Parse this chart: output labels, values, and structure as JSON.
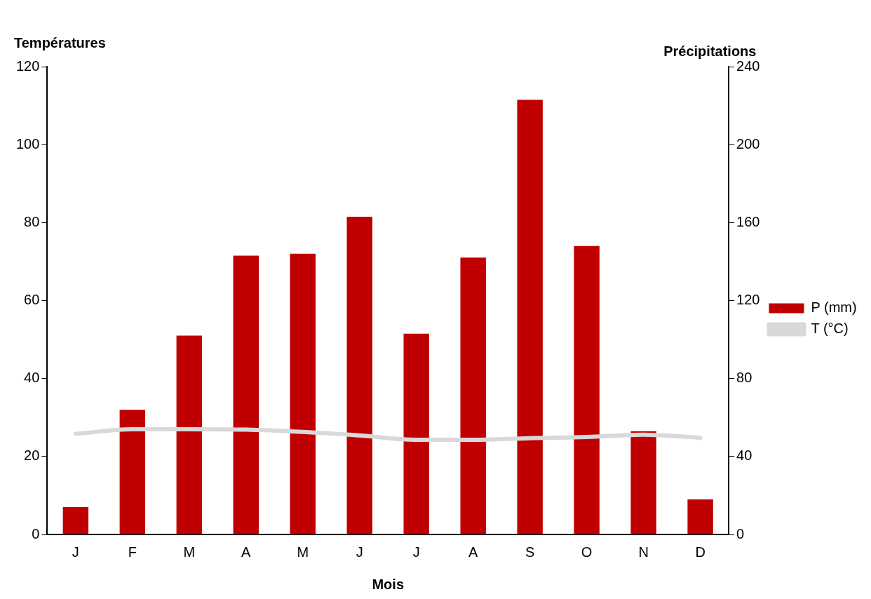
{
  "chart_data": {
    "type": "bar",
    "xlabel": "Mois",
    "ylabel": "Températures",
    "y2label": "Précipitations",
    "categories": [
      "J",
      "F",
      "M",
      "A",
      "M",
      "J",
      "J",
      "A",
      "S",
      "O",
      "N",
      "D"
    ],
    "series": [
      {
        "name": "P (mm)",
        "axis": "y2",
        "color": "#c00000",
        "values": [
          14,
          64,
          102,
          143,
          144,
          163,
          103,
          142,
          223,
          148,
          53,
          18
        ]
      },
      {
        "name": "T (°C)",
        "type": "line",
        "color": "#d9d9d9",
        "values": [
          25.8,
          27,
          27,
          26.9,
          26.3,
          25.4,
          24.3,
          24.3,
          24.7,
          25,
          25.6,
          24.8
        ]
      }
    ],
    "ylim": [
      0,
      120
    ],
    "yticks": [
      0,
      20,
      40,
      60,
      80,
      100,
      120
    ],
    "y2lim": [
      0,
      240
    ],
    "y2ticks": [
      0,
      40,
      80,
      120,
      160,
      200,
      240
    ],
    "grid": false,
    "legend": "right",
    "marker": "none",
    "line_style": "solid"
  }
}
